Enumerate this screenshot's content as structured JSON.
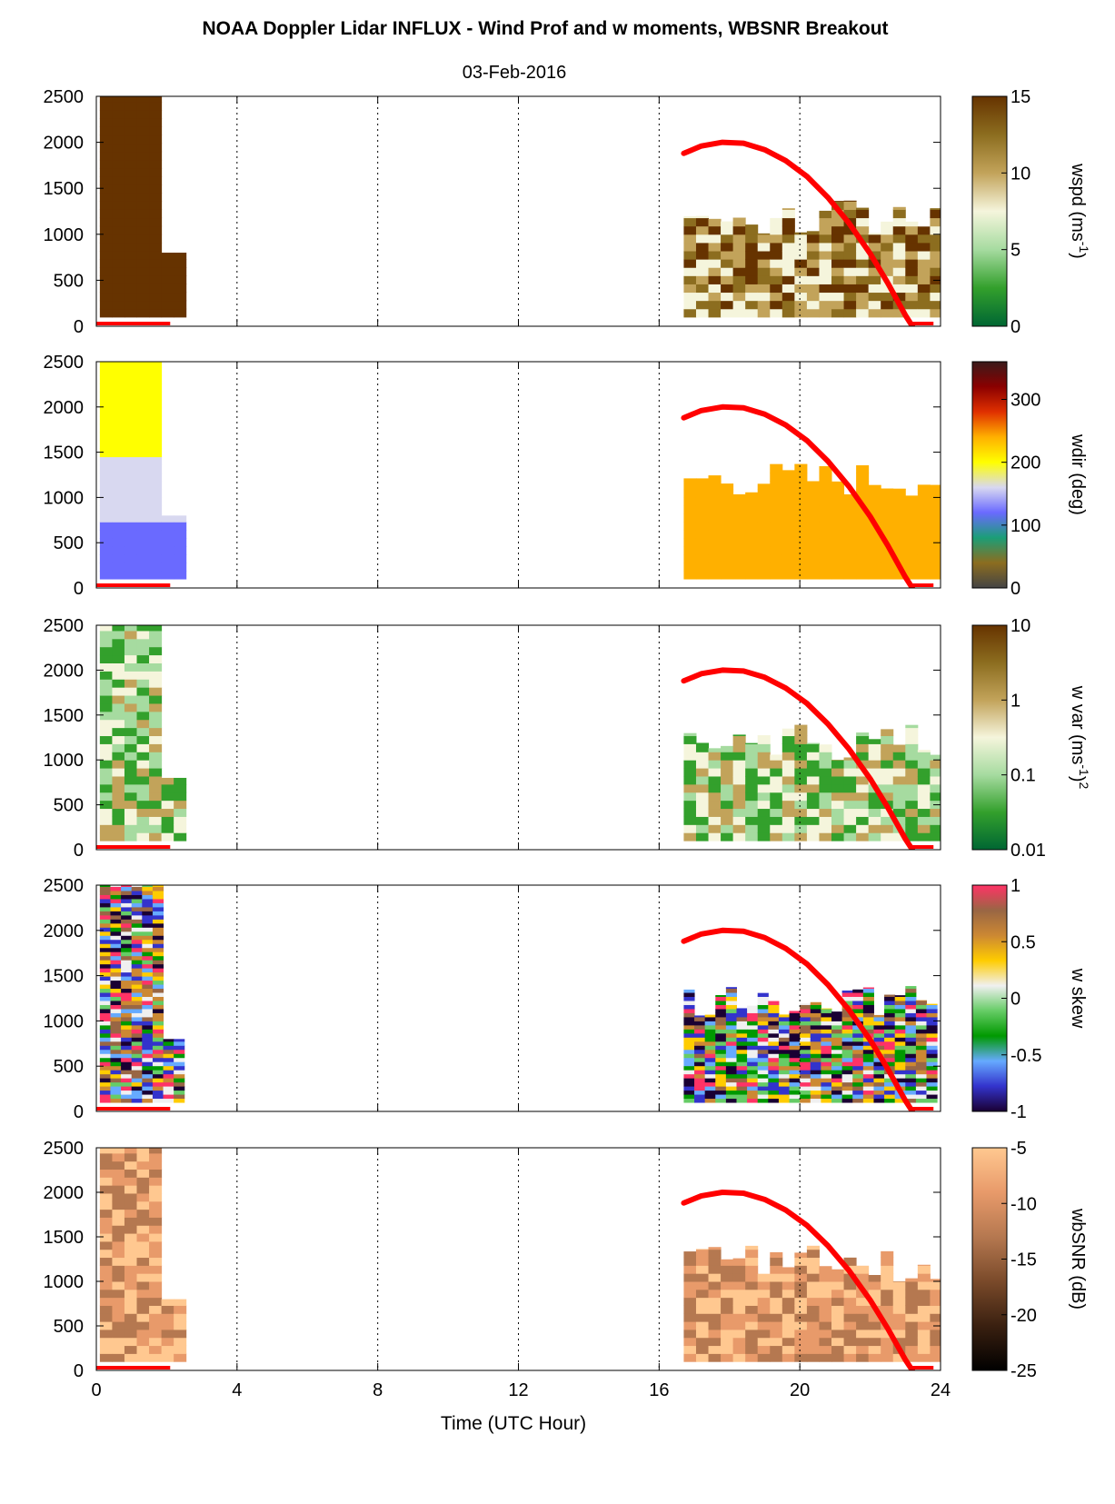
{
  "title": "NOAA Doppler Lidar INFLUX - Wind Prof and w moments, WBSNR Breakout",
  "subtitle": "03-Feb-2016",
  "chart_data": {
    "type": "heatmap",
    "xlabel": "Time (UTC Hour)",
    "xlim": [
      0,
      24
    ],
    "xticks": [
      0,
      4,
      8,
      12,
      16,
      20,
      24
    ],
    "xtick_labels": [
      "0",
      "4",
      "8",
      "12",
      "16",
      "20",
      "24"
    ],
    "ylim": [
      0,
      2500
    ],
    "yticks": [
      0,
      500,
      1000,
      1500,
      2000,
      2500
    ],
    "ytick_labels": [
      "0",
      "500",
      "1000",
      "1500",
      "2000",
      "2500"
    ],
    "vertical_dotted_grid_at": [
      4,
      8,
      12,
      16,
      20,
      24
    ],
    "overlay_line": {
      "color": "#ff0000",
      "description_points": [
        [
          16.7,
          1880
        ],
        [
          17.2,
          1960
        ],
        [
          17.8,
          2000
        ],
        [
          18.4,
          1990
        ],
        [
          19.0,
          1920
        ],
        [
          19.6,
          1800
        ],
        [
          20.2,
          1630
        ],
        [
          20.8,
          1400
        ],
        [
          21.4,
          1120
        ],
        [
          22.0,
          790
        ],
        [
          22.5,
          470
        ],
        [
          23.0,
          120
        ],
        [
          23.2,
          0
        ]
      ]
    },
    "surface_bar": {
      "color": "#ff0000",
      "segments": [
        [
          0,
          2.1
        ],
        [
          23.2,
          23.8
        ]
      ]
    },
    "data_blocks": [
      {
        "x_start": 0.1,
        "x_end": 2.3,
        "top": 2500
      },
      {
        "x_start": 16.7,
        "x_end": 23.8,
        "top": 1400
      }
    ],
    "panels": [
      {
        "name": "wspd",
        "cblabel_main": "wspd (ms",
        "cblabel_sup": "-1",
        "cblabel_tail": ")",
        "cb_ticks": [
          "15",
          "10",
          "5",
          "0"
        ],
        "cb_range": [
          0,
          15
        ],
        "colors": [
          "#006633",
          "#33a02c",
          "#a6dba0",
          "#f5f5dc",
          "#c2a35a",
          "#8c6d1f",
          "#663300"
        ]
      },
      {
        "name": "wdir",
        "cblabel_main": "wdir (deg)",
        "cblabel_sup": "",
        "cblabel_tail": "",
        "cb_ticks": [
          "300",
          "200",
          "100",
          "0"
        ],
        "cb_range": [
          0,
          360
        ],
        "colors": [
          "#444444",
          "#8c6d1f",
          "#1b9e77",
          "#6a6aff",
          "#d8d8f0",
          "#ffff00",
          "#ffb000",
          "#e03000",
          "#8b0000",
          "#3a1a1a"
        ]
      },
      {
        "name": "w var",
        "cblabel_main": "w var (ms",
        "cblabel_sup": "-1",
        "cblabel_tail": ")",
        "cblabel_sup2": "2",
        "cb_ticks": [
          "10",
          "1",
          "0.1",
          "0.01"
        ],
        "cb_range": [
          0.01,
          10
        ],
        "colors": [
          "#006633",
          "#33a02c",
          "#a6dba0",
          "#f5f5dc",
          "#c2a35a",
          "#8c6d1f",
          "#663300"
        ]
      },
      {
        "name": "w skew",
        "cblabel_main": "w skew",
        "cblabel_sup": "",
        "cblabel_tail": "",
        "cb_ticks": [
          "1",
          "0.5",
          "0",
          "-0.5",
          "-1"
        ],
        "cb_range": [
          -1,
          1
        ],
        "colors": [
          "#1a0033",
          "#3333cc",
          "#66aaff",
          "#009900",
          "#66cc66",
          "#f0f0f0",
          "#ffcc00",
          "#cc8833",
          "#996644",
          "#ff3366"
        ]
      },
      {
        "name": "wbSNR",
        "cblabel_main": "wbSNR (dB)",
        "cblabel_sup": "",
        "cblabel_tail": "",
        "cb_ticks": [
          "-5",
          "-10",
          "-15",
          "-20",
          "-25"
        ],
        "cb_range": [
          -25,
          -5
        ],
        "colors": [
          "#000000",
          "#3a2010",
          "#7a4a2a",
          "#b57850",
          "#e89a6a",
          "#ffc890"
        ]
      }
    ]
  }
}
